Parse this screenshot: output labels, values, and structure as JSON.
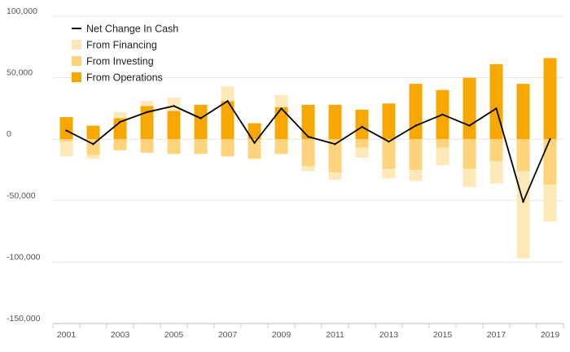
{
  "chart_data": {
    "type": "bar",
    "stacked": true,
    "title": "",
    "xlabel": "",
    "ylabel": "",
    "ylim": [
      -150000,
      100000
    ],
    "yticks": [
      100000,
      50000,
      0,
      -50000,
      -100000,
      -150000
    ],
    "ytick_labels": [
      "100,000",
      "50,000",
      "0",
      "-50,000",
      "-100,000",
      "-150,000"
    ],
    "categories": [
      "2001",
      "2002",
      "2003",
      "2004",
      "2005",
      "2006",
      "2007",
      "2008",
      "2009",
      "2010",
      "2011",
      "2012",
      "2013",
      "2014",
      "2015",
      "2016",
      "2017",
      "2018",
      "2019"
    ],
    "xtick_labels": [
      "2001",
      "2003",
      "2005",
      "2007",
      "2009",
      "2011",
      "2013",
      "2015",
      "2017",
      "2019"
    ],
    "legend_position": "top-left",
    "grid": true,
    "series": [
      {
        "name": "Net Change In Cash",
        "kind": "line",
        "color": "#000000",
        "values": [
          7000,
          -4000,
          14000,
          22000,
          27000,
          17000,
          31000,
          -3000,
          25000,
          2000,
          -4000,
          10000,
          -2000,
          11000,
          20000,
          11000,
          25000,
          -51000,
          0
        ]
      },
      {
        "name": "From Financing",
        "kind": "bar",
        "color": "#fde8b8",
        "values": [
          -12000,
          -3000,
          5000,
          4000,
          11000,
          0,
          12000,
          0,
          10000,
          -4000,
          -6000,
          -8000,
          -8000,
          -9000,
          -14000,
          -15000,
          -18000,
          -71000,
          -30000
        ]
      },
      {
        "name": "From Investing",
        "kind": "bar",
        "color": "#fdd37c",
        "values": [
          -2000,
          -13000,
          -9000,
          -11000,
          -12000,
          -12000,
          -14000,
          -16000,
          -12000,
          -22000,
          -27000,
          -7000,
          -24000,
          -25000,
          -7000,
          -24000,
          -18000,
          -26000,
          -37000
        ]
      },
      {
        "name": "From Operations",
        "kind": "bar",
        "color": "#f7a800",
        "values": [
          18000,
          11000,
          17000,
          27000,
          23000,
          28000,
          31000,
          13000,
          26000,
          28000,
          28000,
          24000,
          29000,
          45000,
          40000,
          50000,
          61000,
          45000,
          66000
        ]
      }
    ]
  }
}
